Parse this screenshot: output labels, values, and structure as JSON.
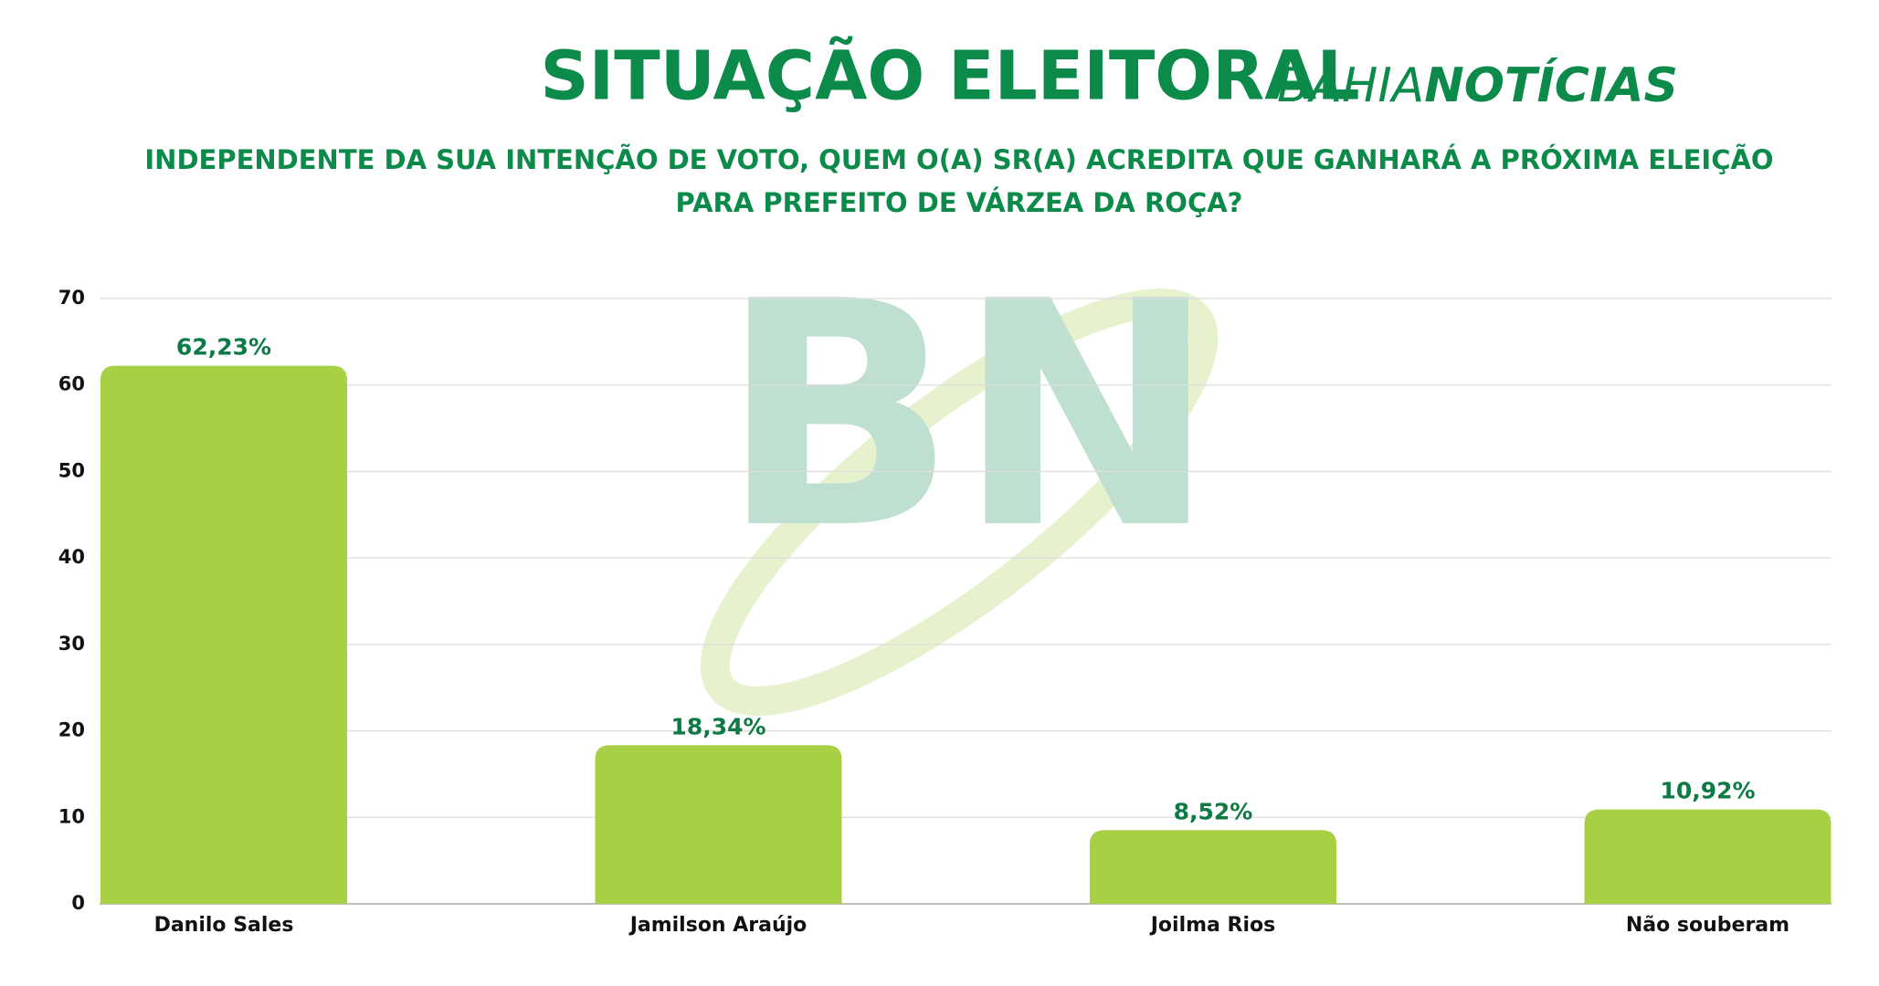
{
  "chart_data": {
    "type": "bar",
    "title": "SITUAÇÃO ELEITORAL",
    "subtitle": [
      "INDEPENDENTE DA SUA INTENÇÃO DE VOTO, QUEM O(A) SR(A) ACREDITA QUE GANHARÁ A PRÓXIMA ELEIÇÃO",
      "PARA PREFEITO DE VÁRZEA DA ROÇA?"
    ],
    "logo": [
      "BAHIA",
      "NOTÍCIAS"
    ],
    "watermark": "BN",
    "categories": [
      "Danilo Sales",
      "Jamilson Araújo",
      "Joilma Rios",
      "Não souberam"
    ],
    "values": [
      62.23,
      18.34,
      8.52,
      10.92
    ],
    "value_labels": [
      "62,23%",
      "18,34%",
      "8,52%",
      "10,92%"
    ],
    "color": "#a8d045",
    "ylim": [
      0,
      70
    ],
    "yticks": [
      0,
      10,
      20,
      30,
      40,
      50,
      60,
      70
    ],
    "grid": true
  }
}
